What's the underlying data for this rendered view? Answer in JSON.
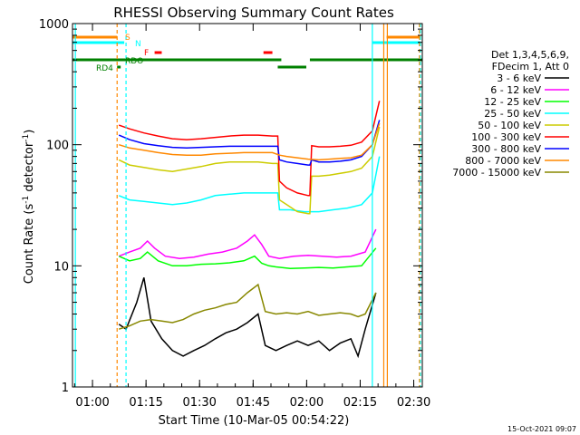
{
  "chart_data": {
    "type": "line",
    "title": "RHESSI Observing Summary Count Rates",
    "xlabel": "Start Time (10-Mar-05 00:54:22)",
    "ylabel_main": "Count Rate (s",
    "ylabel_sup": "-1",
    "ylabel_tail": " detector",
    "ylabel_end": ")",
    "x_unit": "minutes after 00:54:22",
    "xlim": [
      0,
      98
    ],
    "ylim": [
      1,
      1000
    ],
    "y_scale": "log",
    "grid": false,
    "x_ticks": [
      {
        "t": 5.6,
        "label": "01:00"
      },
      {
        "t": 20.6,
        "label": "01:15"
      },
      {
        "t": 35.6,
        "label": "01:30"
      },
      {
        "t": 50.6,
        "label": "01:45"
      },
      {
        "t": 65.6,
        "label": "02:00"
      },
      {
        "t": 80.6,
        "label": "02:15"
      },
      {
        "t": 95.6,
        "label": "02:30"
      }
    ],
    "y_ticks": [
      {
        "v": 1,
        "label": "1"
      },
      {
        "v": 10,
        "label": "10"
      },
      {
        "v": 100,
        "label": "100"
      },
      {
        "v": 1000,
        "label": "1000"
      }
    ],
    "legend": {
      "header_lines": [
        "Det 1,3,4,5,6,9,",
        "FDecim 1, Att 0"
      ],
      "entries": [
        {
          "label": "3 - 6 keV",
          "color": "#000000"
        },
        {
          "label": "6 - 12 keV",
          "color": "#ff00ff"
        },
        {
          "label": "12 - 25 keV",
          "color": "#00ff00"
        },
        {
          "label": "25 - 50 keV",
          "color": "#00ffff"
        },
        {
          "label": "50 - 100 keV",
          "color": "#cccc00"
        },
        {
          "label": "100 - 300 keV",
          "color": "#ff0000"
        },
        {
          "label": "300 - 800 keV",
          "color": "#0000ff"
        },
        {
          "label": "800 - 7000 keV",
          "color": "#ff8800"
        },
        {
          "label": "7000 - 15000 keV",
          "color": "#888800"
        }
      ],
      "position": "right"
    },
    "series": [
      {
        "name": "3 - 6 keV",
        "color": "#000000",
        "x": [
          13,
          15,
          18,
          20,
          22,
          25,
          28,
          31,
          34,
          37,
          40,
          43,
          46,
          49,
          52,
          54,
          57,
          60,
          63,
          66,
          69,
          72,
          75,
          78,
          80,
          82,
          85
        ],
        "y": [
          3.3,
          3,
          5,
          8,
          3.5,
          2.5,
          2,
          1.8,
          2,
          2.2,
          2.5,
          2.8,
          3,
          3.4,
          4,
          2.2,
          2,
          2.2,
          2.4,
          2.2,
          2.4,
          2,
          2.3,
          2.5,
          1.8,
          3,
          6
        ]
      },
      {
        "name": "6 - 12 keV",
        "color": "#ff00ff",
        "x": [
          13,
          16,
          19,
          21,
          23,
          26,
          30,
          34,
          38,
          42,
          46,
          49,
          51,
          53,
          55,
          58,
          62,
          66,
          70,
          74,
          78,
          82,
          85
        ],
        "y": [
          12,
          13,
          14,
          16,
          14,
          12,
          11.5,
          11.8,
          12.5,
          13,
          14,
          16,
          18,
          15,
          12,
          11.5,
          12,
          12.2,
          12,
          11.8,
          12,
          13,
          20
        ]
      },
      {
        "name": "12 - 25 keV",
        "color": "#00ff00",
        "x": [
          13,
          16,
          19,
          21,
          24,
          28,
          32,
          36,
          40,
          44,
          48,
          51,
          53,
          55,
          57,
          61,
          65,
          69,
          73,
          77,
          81,
          85
        ],
        "y": [
          12,
          11,
          11.5,
          13,
          11,
          10,
          10,
          10.3,
          10.4,
          10.6,
          11,
          12,
          10.5,
          10,
          9.8,
          9.5,
          9.6,
          9.7,
          9.6,
          9.8,
          10,
          14
        ]
      },
      {
        "name": "25 - 50 keV",
        "color": "#00ffff",
        "x": [
          13,
          16,
          20,
          24,
          28,
          32,
          36,
          40,
          44,
          48,
          52,
          56,
          57.5,
          58,
          61,
          65,
          69,
          73,
          77,
          81,
          84,
          86
        ],
        "y": [
          38,
          35,
          34,
          33,
          32,
          33,
          35,
          38,
          39,
          40,
          40,
          40,
          40,
          29,
          29,
          28,
          28,
          29,
          30,
          32,
          40,
          80
        ]
      },
      {
        "name": "50 - 100 keV",
        "color": "#cccc00",
        "x": [
          13,
          16,
          20,
          24,
          28,
          32,
          36,
          40,
          44,
          48,
          52,
          56,
          57.5,
          58,
          60,
          63,
          66,
          66.5,
          67,
          69,
          72,
          75,
          78,
          81,
          84,
          86
        ],
        "y": [
          75,
          68,
          65,
          62,
          60,
          63,
          66,
          70,
          72,
          72,
          72,
          70,
          70,
          35,
          32,
          28,
          27,
          27,
          55,
          55,
          56,
          58,
          60,
          64,
          80,
          140
        ]
      },
      {
        "name": "100 - 300 keV",
        "color": "#ff0000",
        "x": [
          13,
          16,
          20,
          24,
          28,
          32,
          36,
          40,
          44,
          48,
          52,
          56,
          57.5,
          58,
          60,
          63,
          66,
          66.5,
          67,
          69,
          72,
          75,
          78,
          81,
          84,
          86
        ],
        "y": [
          145,
          135,
          125,
          118,
          112,
          110,
          112,
          115,
          118,
          120,
          120,
          118,
          118,
          50,
          44,
          40,
          38,
          38,
          98,
          96,
          96,
          97,
          99,
          105,
          130,
          230
        ]
      },
      {
        "name": "300 - 800 keV",
        "color": "#0000ff",
        "x": [
          13,
          16,
          20,
          24,
          28,
          32,
          36,
          40,
          44,
          48,
          52,
          56,
          57.5,
          58,
          60,
          63,
          66,
          66.5,
          67,
          69,
          72,
          75,
          78,
          81,
          84,
          86
        ],
        "y": [
          120,
          110,
          102,
          98,
          95,
          94,
          95,
          96,
          97,
          97,
          97,
          97,
          97,
          75,
          72,
          70,
          68,
          68,
          75,
          72,
          72,
          73,
          75,
          80,
          100,
          160
        ]
      },
      {
        "name": "800 - 7000 keV",
        "color": "#ff8800",
        "x": [
          13,
          16,
          20,
          24,
          28,
          32,
          36,
          40,
          44,
          48,
          52,
          56,
          58,
          60,
          63,
          66,
          69,
          72,
          75,
          78,
          81,
          84,
          86
        ],
        "y": [
          100,
          94,
          90,
          86,
          83,
          82,
          82,
          84,
          85,
          86,
          86,
          86,
          82,
          80,
          78,
          76,
          75,
          76,
          77,
          78,
          82,
          100,
          150
        ]
      },
      {
        "name": "7000 - 15000 keV",
        "color": "#888800",
        "x": [
          13,
          16,
          19,
          22,
          25,
          28,
          31,
          34,
          37,
          40,
          43,
          46,
          49,
          52,
          54,
          57,
          60,
          63,
          66,
          69,
          72,
          75,
          78,
          80,
          82,
          85
        ],
        "y": [
          3,
          3.2,
          3.5,
          3.6,
          3.5,
          3.4,
          3.6,
          4,
          4.3,
          4.5,
          4.8,
          5,
          6,
          7,
          4.2,
          4,
          4.1,
          4,
          4.2,
          3.9,
          4,
          4.1,
          4,
          3.8,
          4,
          6
        ]
      }
    ],
    "markers": [
      {
        "label": "S",
        "color": "#ff8800"
      },
      {
        "label": "N",
        "color": "#00ffff"
      },
      {
        "label": "F",
        "color": "#ff0000"
      },
      {
        "label": "RD4",
        "color": "#008000"
      },
      {
        "label": "RDO",
        "color": "#008000"
      }
    ]
  },
  "footer": {
    "timestamp": "15-Oct-2021 09:07"
  }
}
